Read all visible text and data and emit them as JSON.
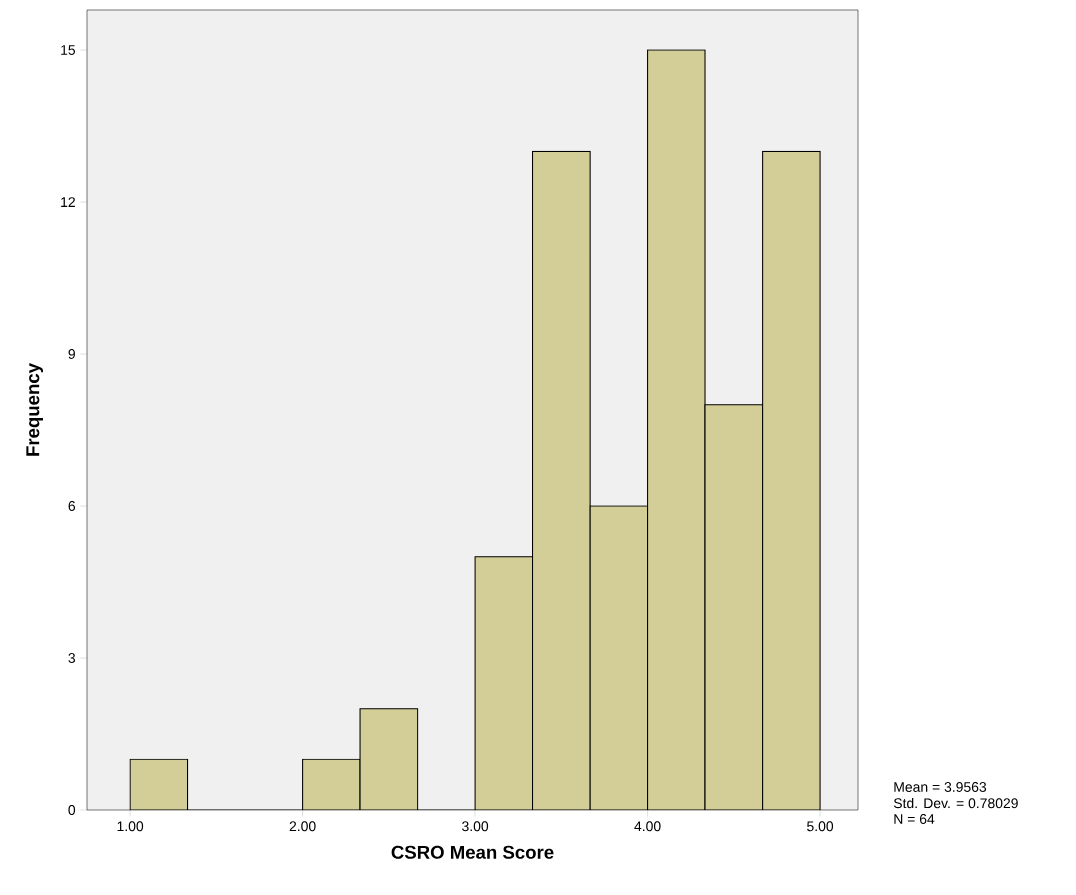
{
  "chart_data": {
    "type": "histogram",
    "xlabel": "CSRO Mean Score",
    "ylabel": "Frequency",
    "bins": [
      1.0,
      1.333,
      1.667,
      2.0,
      2.333,
      2.667,
      3.0,
      3.333,
      3.667,
      4.0,
      4.333,
      4.667,
      5.0
    ],
    "values": [
      1,
      0,
      0,
      1,
      2,
      0,
      5,
      13,
      6,
      15,
      8,
      13
    ],
    "color": "#d3ce98",
    "xlim": [
      0.75,
      5.22
    ],
    "ylim": [
      0,
      15.79
    ],
    "xticks": [
      {
        "value": 1,
        "label": "1.00"
      },
      {
        "value": 2,
        "label": "2.00"
      },
      {
        "value": 3,
        "label": "3.00"
      },
      {
        "value": 4,
        "label": "4.00"
      },
      {
        "value": 5,
        "label": "5.00"
      }
    ],
    "yticks": [
      0,
      3,
      6,
      9,
      12,
      15
    ],
    "grid": false,
    "annotations": [
      "Mean = 3.9563",
      "Std. Dev. = 0.78029",
      "N = 64"
    ]
  }
}
